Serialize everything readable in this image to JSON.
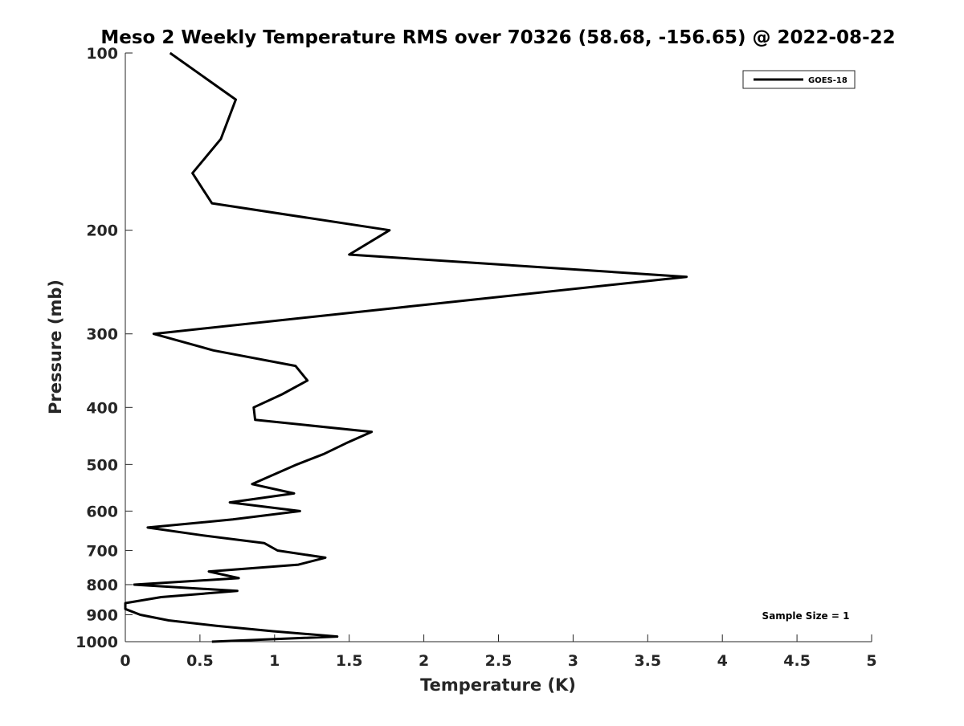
{
  "chart_data": {
    "type": "line",
    "title": "Meso 2 Weekly Temperature RMS over 70326 (58.68, -156.65) @ 2022-08-22",
    "xlabel": "Temperature (K)",
    "ylabel": "Pressure (mb)",
    "xlim": [
      0,
      5
    ],
    "ylim": [
      100,
      1000
    ],
    "yscale": "log",
    "yreversed": true,
    "grid": false,
    "x_ticks": [
      0,
      0.5,
      1,
      1.5,
      2,
      2.5,
      3,
      3.5,
      4,
      4.5,
      5
    ],
    "x_tick_labels": [
      "0",
      "0.5",
      "1",
      "1.5",
      "2",
      "2.5",
      "3",
      "3.5",
      "4",
      "4.5",
      "5"
    ],
    "y_ticks": [
      100,
      200,
      300,
      400,
      500,
      600,
      700,
      800,
      900,
      1000
    ],
    "y_tick_labels": [
      "100",
      "200",
      "300",
      "400",
      "500",
      "600",
      "700",
      "800",
      "900",
      "1000"
    ],
    "legend": {
      "placement": "top-right",
      "entries": [
        "GOES-18"
      ]
    },
    "annotation": "Sample Size = 1",
    "series": [
      {
        "name": "GOES-18",
        "color": "#000000",
        "pressure": [
          100,
          120,
          140,
          160,
          180,
          200,
          220,
          240,
          300,
          320,
          340,
          360,
          380,
          400,
          420,
          440,
          460,
          480,
          500,
          540,
          560,
          580,
          600,
          620,
          640,
          660,
          680,
          700,
          720,
          740,
          760,
          780,
          800,
          820,
          840,
          860,
          880,
          900,
          920,
          940,
          960,
          980,
          1000
        ],
        "temperature": [
          0.3,
          0.74,
          0.64,
          0.45,
          0.58,
          1.77,
          1.5,
          3.76,
          0.19,
          0.59,
          1.14,
          1.22,
          1.05,
          0.86,
          0.87,
          1.65,
          1.48,
          1.33,
          1.15,
          0.85,
          1.13,
          0.7,
          1.17,
          0.72,
          0.15,
          0.52,
          0.93,
          1.02,
          1.34,
          1.16,
          0.56,
          0.76,
          0.06,
          0.75,
          0.24,
          0.0,
          0.0,
          0.1,
          0.29,
          0.61,
          0.99,
          1.42,
          0.58
        ]
      }
    ]
  }
}
